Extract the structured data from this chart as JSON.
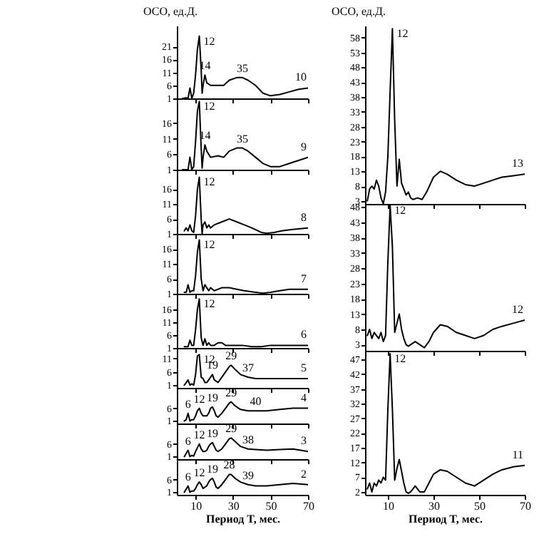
{
  "chart_data": [
    {
      "type": "line",
      "ylabel": "ОСО, ед.Д.",
      "tick_labels": "y",
      "xlim": [
        0,
        70
      ],
      "xticks": [
        10,
        30,
        50,
        70
      ],
      "ylim": [
        1,
        29
      ],
      "yticks": [
        1,
        6,
        11,
        16,
        21
      ],
      "x": [
        3,
        5,
        6,
        7,
        8,
        9,
        10,
        11,
        12,
        13,
        13.5,
        14,
        15,
        16,
        18,
        22,
        25,
        28,
        32,
        35,
        38,
        42,
        46,
        50,
        55,
        60,
        65,
        70
      ],
      "series": [
        {
          "color": "#000000",
          "values": [
            1,
            1.2,
            1,
            5,
            1,
            3,
            10,
            20,
            25,
            12,
            3,
            6,
            10,
            7,
            6,
            6,
            6,
            8,
            9,
            9,
            8,
            6,
            3,
            2,
            2.5,
            3.5,
            4.5,
            5
          ]
        }
      ],
      "annotations": [
        {
          "text": "12",
          "x": 12,
          "y": 25
        },
        {
          "text": "14",
          "x": 15,
          "y": 10
        },
        {
          "text": "35",
          "x": 35,
          "y": 9
        },
        {
          "text": "10",
          "x": 70,
          "y": 5
        }
      ]
    },
    {
      "type": "line",
      "tick_labels": "y",
      "xlim": [
        0,
        70
      ],
      "xticks": [
        10,
        30,
        50,
        70
      ],
      "ylim": [
        1,
        24
      ],
      "yticks": [
        1,
        6,
        11,
        16
      ],
      "x": [
        3,
        6,
        7,
        8,
        9,
        10,
        11,
        12,
        13,
        13.5,
        14,
        15,
        16,
        18,
        22,
        25,
        28,
        32,
        35,
        38,
        42,
        46,
        50,
        55,
        60,
        65,
        70
      ],
      "series": [
        {
          "color": "#000000",
          "values": [
            1,
            1,
            5,
            1,
            2,
            10,
            20,
            23,
            8,
            1.5,
            5,
            9,
            7,
            5,
            5.5,
            5,
            7,
            8,
            8,
            7,
            5,
            3,
            2,
            2,
            3,
            4,
            5
          ]
        }
      ],
      "annotations": [
        {
          "text": "12",
          "x": 12,
          "y": 23
        },
        {
          "text": "14",
          "x": 15,
          "y": 9
        },
        {
          "text": "35",
          "x": 35,
          "y": 8
        },
        {
          "text": "9",
          "x": 70,
          "y": 5
        }
      ]
    },
    {
      "type": "line",
      "tick_labels": "y",
      "xlim": [
        0,
        70
      ],
      "xticks": [
        10,
        30,
        50,
        70
      ],
      "ylim": [
        1,
        22.5
      ],
      "yticks": [
        1,
        6,
        11,
        16
      ],
      "x": [
        4,
        5,
        6,
        7,
        8,
        9,
        10,
        11,
        12,
        13,
        13.5,
        14,
        15,
        16,
        17,
        18,
        20,
        24,
        28,
        32,
        36,
        40,
        45,
        48,
        52,
        56,
        62,
        70
      ],
      "series": [
        {
          "color": "#000000",
          "values": [
            2,
            3,
            2,
            4,
            2,
            1.5,
            7,
            16,
            20,
            6,
            1,
            4,
            5,
            3,
            4,
            3,
            4,
            5,
            6,
            5,
            4,
            3,
            1.5,
            1.2,
            1.5,
            2,
            2.5,
            3
          ]
        }
      ],
      "annotations": [
        {
          "text": "12",
          "x": 12,
          "y": 20
        },
        {
          "text": "8",
          "x": 70,
          "y": 3
        }
      ]
    },
    {
      "type": "line",
      "tick_labels": "y",
      "xlim": [
        0,
        70
      ],
      "xticks": [
        10,
        30,
        50,
        70
      ],
      "ylim": [
        1,
        21
      ],
      "yticks": [
        1,
        6,
        11,
        16
      ],
      "x": [
        4,
        5,
        6,
        7,
        8,
        9,
        10,
        11,
        12,
        13,
        14,
        15,
        16,
        17,
        18,
        20,
        24,
        28,
        32,
        36,
        42,
        46,
        50,
        55,
        60,
        70
      ],
      "series": [
        {
          "color": "#000000",
          "values": [
            1.5,
            1.5,
            4,
            1.5,
            2,
            2,
            7,
            15,
            19,
            6,
            2,
            4,
            3,
            2,
            3,
            2,
            3,
            3,
            2.5,
            2,
            1.5,
            1.2,
            1.5,
            2,
            2.5,
            2.5
          ]
        }
      ],
      "annotations": [
        {
          "text": "12",
          "x": 12,
          "y": 19
        },
        {
          "text": "7",
          "x": 70,
          "y": 2.5
        }
      ]
    },
    {
      "type": "line",
      "tick_labels": "y",
      "xlim": [
        0,
        70
      ],
      "xticks": [
        10,
        30,
        50,
        70
      ],
      "ylim": [
        1,
        22
      ],
      "yticks": [
        1,
        6,
        11,
        16
      ],
      "x": [
        4,
        6,
        7,
        8,
        9,
        10,
        11,
        12,
        13,
        14,
        15,
        16,
        17,
        18,
        20,
        22,
        24,
        26,
        30,
        35,
        40,
        45,
        50,
        55,
        60,
        70
      ],
      "series": [
        {
          "color": "#000000",
          "values": [
            1.5,
            1.5,
            4,
            2,
            2,
            8,
            16,
            20,
            5,
            2,
            4.5,
            2,
            3,
            2,
            2,
            3,
            3,
            2,
            2,
            2,
            1.5,
            1.5,
            2,
            2,
            2,
            2
          ]
        }
      ],
      "annotations": [
        {
          "text": "12",
          "x": 12,
          "y": 20
        },
        {
          "text": "6",
          "x": 70,
          "y": 2
        }
      ]
    },
    {
      "type": "line",
      "tick_labels": "y",
      "xlim": [
        0,
        70
      ],
      "xticks": [
        10,
        30,
        50,
        70
      ],
      "ylim": [
        0,
        15
      ],
      "yticks": [
        1,
        6,
        11
      ],
      "x": [
        4,
        6,
        7,
        8,
        9,
        10,
        11,
        12,
        13,
        14,
        15,
        16,
        17,
        18,
        19,
        20,
        21,
        22,
        24,
        26,
        28,
        29,
        31,
        34,
        38,
        42,
        48,
        55,
        62,
        70
      ],
      "series": [
        {
          "color": "#000000",
          "values": [
            1,
            3,
            1,
            1.5,
            1,
            5,
            12,
            12.5,
            4,
            3.5,
            2,
            2,
            3,
            4,
            5,
            3,
            2.5,
            2,
            4,
            6,
            8,
            8.5,
            7,
            5,
            4,
            3.5,
            3.5,
            3.5,
            3.5,
            3.5
          ]
        }
      ],
      "annotations": [
        {
          "text": "12",
          "x": 12,
          "y": 12.5
        },
        {
          "text": "19",
          "x": 19,
          "y": 5
        },
        {
          "text": "29",
          "x": 29,
          "y": 8.5
        },
        {
          "text": "37",
          "x": 38,
          "y": 4
        },
        {
          "text": "5",
          "x": 70,
          "y": 3.5
        }
      ]
    },
    {
      "type": "line",
      "tick_labels": "y",
      "xlim": [
        0,
        70
      ],
      "xticks": [
        10,
        30,
        50,
        70
      ],
      "ylim": [
        0,
        14
      ],
      "yticks": [
        1,
        6
      ],
      "x": [
        4,
        5,
        6,
        7,
        8,
        9,
        10,
        11,
        12,
        13,
        14,
        15,
        16,
        17,
        18,
        19,
        20,
        21,
        22,
        24,
        26,
        28,
        29,
        31,
        34,
        38,
        42,
        48,
        55,
        62,
        70
      ],
      "series": [
        {
          "color": "#000000",
          "values": [
            1,
            1.5,
            4,
            1,
            1.5,
            1.5,
            3,
            5,
            6,
            4,
            3,
            3,
            3,
            4,
            6,
            6.5,
            5,
            3,
            2.5,
            4,
            6,
            8,
            8.5,
            7,
            5.5,
            5,
            5,
            5,
            5.5,
            6,
            6
          ]
        }
      ],
      "annotations": [
        {
          "text": "6",
          "x": 6,
          "y": 4
        },
        {
          "text": "12",
          "x": 12,
          "y": 6
        },
        {
          "text": "19",
          "x": 19,
          "y": 6.5
        },
        {
          "text": "29",
          "x": 29,
          "y": 8.5
        },
        {
          "text": "40",
          "x": 42,
          "y": 5
        },
        {
          "text": "4",
          "x": 70,
          "y": 6
        }
      ]
    },
    {
      "type": "line",
      "tick_labels": "y",
      "xlim": [
        0,
        70
      ],
      "xticks": [
        10,
        30,
        50,
        70
      ],
      "ylim": [
        0,
        14
      ],
      "yticks": [
        1,
        6
      ],
      "x": [
        4,
        6,
        7,
        8,
        9,
        10,
        11,
        12,
        13,
        14,
        15,
        16,
        17,
        18,
        19,
        20,
        21,
        22,
        24,
        26,
        28,
        29,
        31,
        34,
        38,
        42,
        48,
        55,
        62,
        70
      ],
      "series": [
        {
          "color": "#000000",
          "values": [
            1,
            3.5,
            1,
            1.5,
            1.2,
            3,
            4.5,
            6,
            4,
            3,
            3,
            3.5,
            5,
            6,
            6.5,
            5,
            3.5,
            3,
            4,
            6,
            8,
            8.3,
            7,
            5,
            4,
            3.8,
            3.5,
            3.8,
            4,
            3
          ]
        }
      ],
      "annotations": [
        {
          "text": "6",
          "x": 6,
          "y": 3.5
        },
        {
          "text": "12",
          "x": 12,
          "y": 6
        },
        {
          "text": "19",
          "x": 19,
          "y": 6.5
        },
        {
          "text": "29",
          "x": 29,
          "y": 8.3
        },
        {
          "text": "38",
          "x": 38,
          "y": 4
        },
        {
          "text": "3",
          "x": 70,
          "y": 3
        }
      ]
    },
    {
      "type": "line",
      "xlabel": "Период T, мес.",
      "xlim": [
        0,
        70
      ],
      "xticks": [
        10,
        30,
        50,
        70
      ],
      "ylim": [
        0,
        14
      ],
      "yticks": [
        1,
        6
      ],
      "x": [
        4,
        6,
        7,
        8,
        9,
        10,
        11,
        12,
        13,
        14,
        15,
        16,
        17,
        18,
        19,
        20,
        21,
        22,
        24,
        26,
        28,
        29,
        31,
        34,
        38,
        42,
        48,
        55,
        62,
        70
      ],
      "series": [
        {
          "color": "#000000",
          "values": [
            1,
            3.5,
            1,
            1.5,
            1.5,
            2.5,
            4,
            5,
            4,
            2.5,
            3,
            3.5,
            5,
            6,
            6.5,
            5,
            3,
            2.5,
            4,
            6,
            8,
            8,
            6.5,
            5,
            4,
            3.5,
            3.5,
            4,
            4.5,
            4
          ]
        }
      ],
      "annotations": [
        {
          "text": "6",
          "x": 6,
          "y": 3.5
        },
        {
          "text": "12",
          "x": 12,
          "y": 5
        },
        {
          "text": "19",
          "x": 19,
          "y": 6.5
        },
        {
          "text": "28",
          "x": 28,
          "y": 8
        },
        {
          "text": "39",
          "x": 38,
          "y": 4
        },
        {
          "text": "2",
          "x": 70,
          "y": 4
        }
      ]
    },
    {
      "type": "line",
      "ylabel": "ОСО, ед.Д.",
      "tick_labels": "y",
      "xlim": [
        0,
        70
      ],
      "xticks": [
        10,
        30,
        50,
        70
      ],
      "ylim": [
        2,
        62
      ],
      "yticks": [
        3,
        8,
        13,
        18,
        23,
        28,
        33,
        38,
        43,
        48,
        53,
        58
      ],
      "x": [
        1,
        2,
        3,
        4,
        5,
        6,
        7,
        8,
        9,
        10,
        11,
        12,
        13,
        14,
        15,
        16,
        17,
        18,
        19,
        20,
        21,
        23,
        25,
        27,
        30,
        33,
        36,
        40,
        44,
        48,
        52,
        56,
        60,
        65,
        70
      ],
      "series": [
        {
          "color": "#000000",
          "values": [
            3,
            7,
            8,
            7,
            10,
            8,
            4,
            2,
            6,
            18,
            40,
            61,
            30,
            8,
            17,
            9,
            7,
            5,
            6,
            4,
            3.5,
            4,
            3.5,
            6,
            11,
            13,
            12,
            10,
            8.5,
            8,
            9,
            10,
            11,
            11.5,
            12
          ]
        }
      ],
      "annotations": [
        {
          "text": "12",
          "x": 12,
          "y": 61
        },
        {
          "text": "13",
          "x": 70,
          "y": 12
        }
      ]
    },
    {
      "type": "line",
      "tick_labels": "y",
      "xlim": [
        0,
        70
      ],
      "xticks": [
        10,
        30,
        50,
        70
      ],
      "ylim": [
        1,
        49
      ],
      "yticks": [
        3,
        8,
        13,
        18,
        23,
        28,
        33,
        38,
        43,
        48
      ],
      "x": [
        1,
        2,
        3,
        4,
        5,
        6,
        7,
        8,
        9,
        10,
        11,
        12,
        13,
        14,
        15,
        16,
        17,
        18,
        19,
        20,
        22,
        24,
        26,
        28,
        30,
        33,
        36,
        40,
        44,
        48,
        52,
        56,
        60,
        65,
        70
      ],
      "series": [
        {
          "color": "#000000",
          "values": [
            6,
            8,
            5,
            7,
            6,
            5,
            7,
            4,
            6,
            30,
            48.5,
            35,
            7,
            10,
            13,
            8,
            5,
            3,
            2.5,
            3,
            4,
            3,
            2,
            4,
            7,
            9.5,
            9,
            7,
            6,
            5,
            6,
            8,
            9,
            10,
            11
          ]
        }
      ],
      "annotations": [
        {
          "text": "12",
          "x": 11,
          "y": 48.5
        },
        {
          "text": "12",
          "x": 70,
          "y": 11
        }
      ]
    },
    {
      "type": "line",
      "xlabel": "Период T, мес.",
      "xlim": [
        0,
        70
      ],
      "xticks": [
        10,
        30,
        50,
        70
      ],
      "ylim": [
        1,
        50
      ],
      "yticks": [
        2,
        7,
        12,
        17,
        22,
        27,
        32,
        37,
        42,
        47
      ],
      "x": [
        1,
        2,
        3,
        4,
        5,
        6,
        7,
        8,
        9,
        10,
        11,
        12,
        13,
        14,
        15,
        16,
        17,
        18,
        19,
        20,
        22,
        24,
        26,
        28,
        30,
        33,
        36,
        40,
        44,
        48,
        52,
        56,
        60,
        65,
        70
      ],
      "series": [
        {
          "color": "#000000",
          "values": [
            3,
            5,
            2,
            5,
            4,
            6,
            5,
            7,
            6,
            30,
            49,
            30,
            6,
            10,
            13,
            9,
            5,
            2,
            1.5,
            2,
            4,
            2,
            2,
            5,
            8,
            9.5,
            9,
            7,
            5,
            4,
            6,
            8,
            9.5,
            10.5,
            11
          ]
        }
      ],
      "annotations": [
        {
          "text": "12",
          "x": 11,
          "y": 49
        },
        {
          "text": "11",
          "x": 70,
          "y": 11
        }
      ]
    }
  ]
}
